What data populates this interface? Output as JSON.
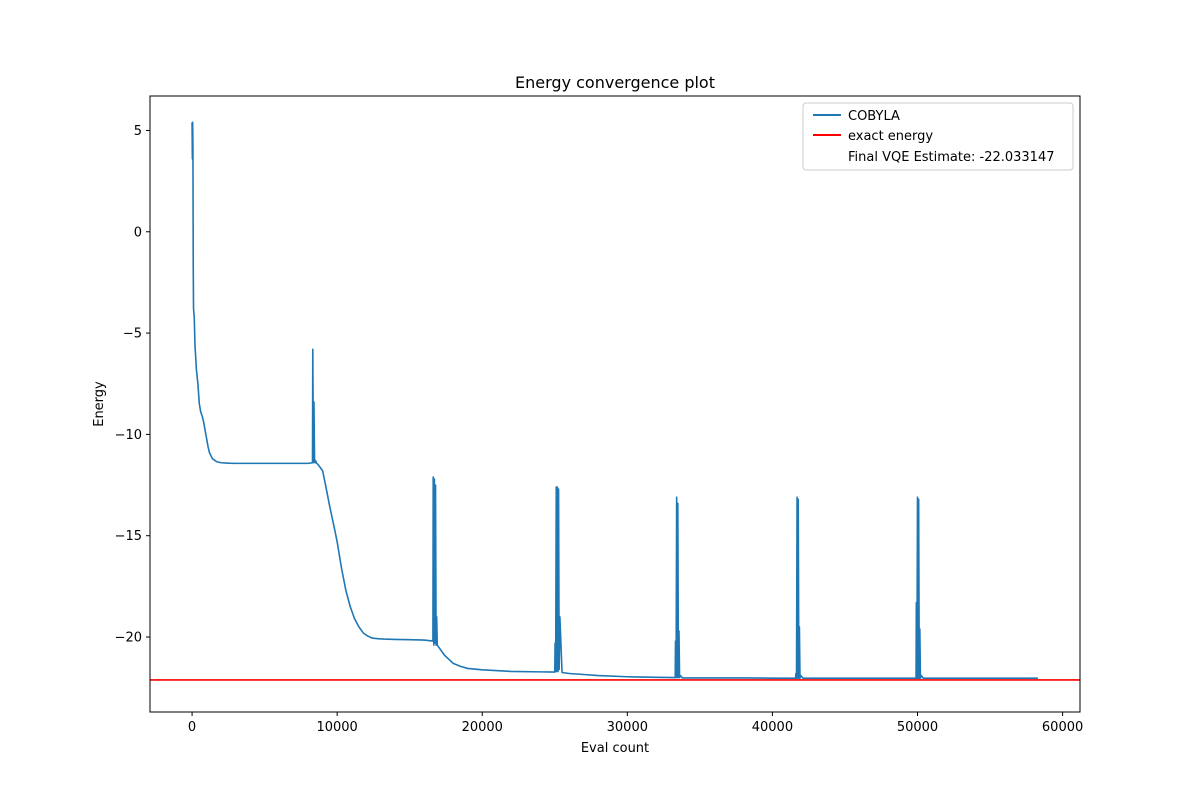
{
  "chart_data": {
    "type": "line",
    "title": "Energy convergence plot",
    "xlabel": "Eval count",
    "ylabel": "Energy",
    "xlim": [
      -2900,
      61200
    ],
    "ylim": [
      -23.7,
      6.7
    ],
    "xticks": [
      0,
      10000,
      20000,
      30000,
      40000,
      50000,
      60000
    ],
    "yticks": [
      5,
      0,
      -5,
      -10,
      -15,
      -20
    ],
    "ytick_labels": [
      "5",
      "0",
      "−5",
      "−10",
      "−15",
      "−20"
    ],
    "grid": false,
    "legend_position": "top-right",
    "series": [
      {
        "name": "COBYLA",
        "color": "#1f77b4",
        "x": [
          0,
          20,
          40,
          60,
          80,
          100,
          150,
          200,
          300,
          400,
          500,
          600,
          700,
          800,
          900,
          1000,
          1100,
          1200,
          1400,
          1700,
          2000,
          2500,
          3000,
          4000,
          5000,
          6000,
          7000,
          8000,
          8300,
          8320,
          8360,
          8400,
          8440,
          8480,
          8520,
          8560,
          8700,
          9000,
          9200,
          9500,
          9800,
          10000,
          10300,
          10600,
          10900,
          11200,
          11500,
          11800,
          12100,
          12400,
          12800,
          13200,
          14000,
          15000,
          16000,
          16600,
          16620,
          16660,
          16700,
          16740,
          16780,
          16820,
          16860,
          16900,
          17000,
          17200,
          17400,
          17700,
          18000,
          18500,
          19000,
          20000,
          22000,
          24000,
          25000,
          25020,
          25060,
          25100,
          25140,
          25180,
          25220,
          25260,
          25300,
          25350,
          25500,
          26000,
          27000,
          28000,
          30000,
          32000,
          33300,
          33320,
          33360,
          33400,
          33440,
          33480,
          33520,
          33560,
          33600,
          33650,
          33800,
          34500,
          36000,
          38000,
          40000,
          41600,
          41620,
          41660,
          41700,
          41740,
          41780,
          41820,
          41860,
          41900,
          41950,
          42100,
          43000,
          45000,
          47000,
          49000,
          49900,
          49920,
          49960,
          50000,
          50040,
          50080,
          50120,
          50160,
          50200,
          50250,
          50400,
          52000,
          55000,
          58300
        ],
        "y": [
          5.4,
          3.6,
          5.4,
          4.0,
          -1.7,
          -3.8,
          -4.2,
          -5.6,
          -6.8,
          -7.5,
          -8.5,
          -8.9,
          -9.1,
          -9.4,
          -9.8,
          -10.2,
          -10.6,
          -10.9,
          -11.2,
          -11.35,
          -11.4,
          -11.42,
          -11.43,
          -11.43,
          -11.43,
          -11.43,
          -11.43,
          -11.43,
          -11.4,
          -5.8,
          -11.4,
          -8.4,
          -11.2,
          -11.4,
          -11.3,
          -11.4,
          -11.5,
          -11.8,
          -12.5,
          -13.6,
          -14.6,
          -15.3,
          -16.6,
          -17.7,
          -18.5,
          -19.1,
          -19.5,
          -19.8,
          -19.95,
          -20.05,
          -20.08,
          -20.1,
          -20.12,
          -20.13,
          -20.15,
          -20.2,
          -12.1,
          -20.4,
          -12.2,
          -20.3,
          -12.5,
          -20.4,
          -19.0,
          -20.4,
          -20.5,
          -20.7,
          -20.9,
          -21.1,
          -21.3,
          -21.45,
          -21.55,
          -21.62,
          -21.7,
          -21.72,
          -21.73,
          -20.3,
          -21.7,
          -12.6,
          -21.7,
          -12.6,
          -21.7,
          -12.7,
          -21.6,
          -19.0,
          -21.75,
          -21.8,
          -21.85,
          -21.9,
          -21.96,
          -21.99,
          -22.0,
          -20.2,
          -22.0,
          -13.1,
          -22.0,
          -13.4,
          -22.0,
          -19.7,
          -22.0,
          -21.9,
          -22.02,
          -22.02,
          -22.02,
          -22.02,
          -22.03,
          -22.03,
          -21.8,
          -22.03,
          -13.1,
          -22.03,
          -13.2,
          -22.03,
          -19.5,
          -22.03,
          -21.9,
          -22.03,
          -22.03,
          -22.03,
          -22.03,
          -22.03,
          -22.03,
          -18.3,
          -22.03,
          -13.1,
          -22.03,
          -13.2,
          -22.03,
          -19.6,
          -22.03,
          -21.9,
          -22.033,
          -22.033,
          -22.033,
          -22.033
        ]
      },
      {
        "name": "exact energy",
        "color": "#ff0000",
        "y": -22.12
      }
    ],
    "legend": {
      "entries": [
        "COBYLA",
        "exact energy",
        "Final VQE Estimate: -22.033147"
      ]
    }
  }
}
